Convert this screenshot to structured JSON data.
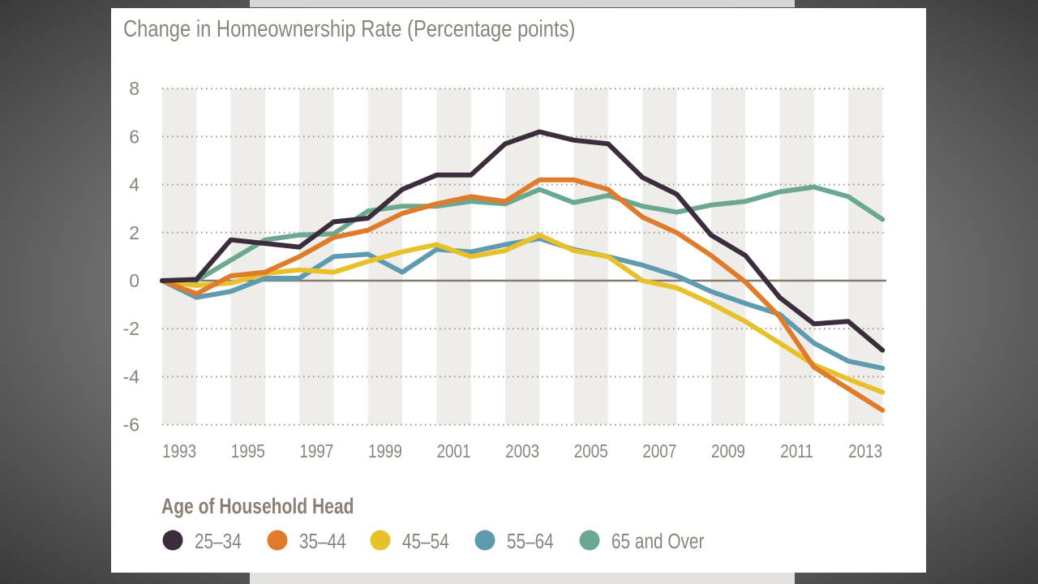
{
  "chart_data": {
    "type": "line",
    "title": "Change in Homeownership Rate (Percentage points)",
    "x": [
      1993,
      1994,
      1995,
      1996,
      1997,
      1998,
      1999,
      2000,
      2001,
      2002,
      2003,
      2004,
      2005,
      2006,
      2007,
      2008,
      2009,
      2010,
      2011,
      2012,
      2013,
      2014
    ],
    "x_tick_labels": [
      "1993",
      "1995",
      "1997",
      "1999",
      "2001",
      "2003",
      "2005",
      "2007",
      "2009",
      "2011",
      "2013"
    ],
    "y_tick_labels": [
      "8",
      "6",
      "4",
      "2",
      "0",
      "-2",
      "-4",
      "-6"
    ],
    "ylim": [
      -6,
      8
    ],
    "grid": "dotted horizontal, alternating shaded year bands",
    "legend_title": "Age of Household Head",
    "legend_position": "bottom",
    "series": [
      {
        "name": "25–34",
        "color": "#3b2d3b",
        "values": [
          0,
          0.05,
          1.7,
          1.55,
          1.4,
          2.45,
          2.6,
          3.8,
          4.4,
          4.4,
          5.7,
          6.2,
          5.85,
          5.7,
          4.3,
          3.6,
          1.9,
          1.05,
          -0.7,
          -1.8,
          -1.7,
          -2.9
        ]
      },
      {
        "name": "35–44",
        "color": "#e07b2c",
        "values": [
          0,
          -0.55,
          0.2,
          0.35,
          1.0,
          1.8,
          2.1,
          2.8,
          3.2,
          3.5,
          3.3,
          4.2,
          4.2,
          3.8,
          2.65,
          2.0,
          1.05,
          -0.05,
          -1.5,
          -3.6,
          -4.5,
          -5.4
        ]
      },
      {
        "name": "45–54",
        "color": "#e8c12a",
        "values": [
          0,
          -0.2,
          -0.1,
          0.3,
          0.45,
          0.35,
          0.8,
          1.2,
          1.5,
          1.0,
          1.25,
          1.9,
          1.25,
          1.0,
          0.0,
          -0.3,
          -0.95,
          -1.7,
          -2.6,
          -3.5,
          -4.1,
          -4.65
        ]
      },
      {
        "name": "55–64",
        "color": "#5e9bb0",
        "values": [
          0,
          -0.7,
          -0.45,
          0.1,
          0.1,
          1.0,
          1.1,
          0.35,
          1.3,
          1.2,
          1.5,
          1.75,
          1.3,
          1.0,
          0.65,
          0.2,
          -0.45,
          -0.95,
          -1.4,
          -2.6,
          -3.35,
          -3.65
        ]
      },
      {
        "name": "65 and Over",
        "color": "#6aa890",
        "values": [
          0,
          0.0,
          0.85,
          1.7,
          1.9,
          1.95,
          2.9,
          3.1,
          3.1,
          3.3,
          3.2,
          3.8,
          3.25,
          3.55,
          3.1,
          2.85,
          3.15,
          3.3,
          3.7,
          3.9,
          3.5,
          2.55
        ]
      }
    ]
  }
}
